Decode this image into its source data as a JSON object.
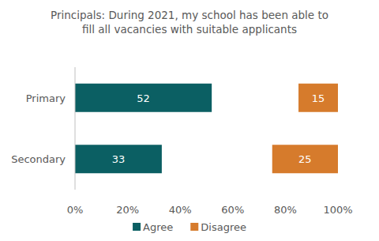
{
  "chart_data": {
    "type": "bar",
    "orientation": "horizontal",
    "title": "Principals: During 2021, my school has been able to fill all vacancies with suitable applicants",
    "categories": [
      "Primary",
      "Secondary"
    ],
    "series": [
      {
        "name": "Agree",
        "color": "#0b5f63",
        "values": [
          52,
          33
        ]
      },
      {
        "name": "Disagree",
        "color": "#d67b2c",
        "values": [
          15,
          25
        ]
      }
    ],
    "xlim": [
      0,
      100
    ],
    "xticks": [
      {
        "value": 0,
        "label": "0%"
      },
      {
        "value": 20,
        "label": "20%"
      },
      {
        "value": 40,
        "label": "40%"
      },
      {
        "value": 60,
        "label": "60%"
      },
      {
        "value": 80,
        "label": "80%"
      },
      {
        "value": 100,
        "label": "100%"
      }
    ],
    "data_labels": true,
    "legend": "bottom",
    "grid": false
  }
}
